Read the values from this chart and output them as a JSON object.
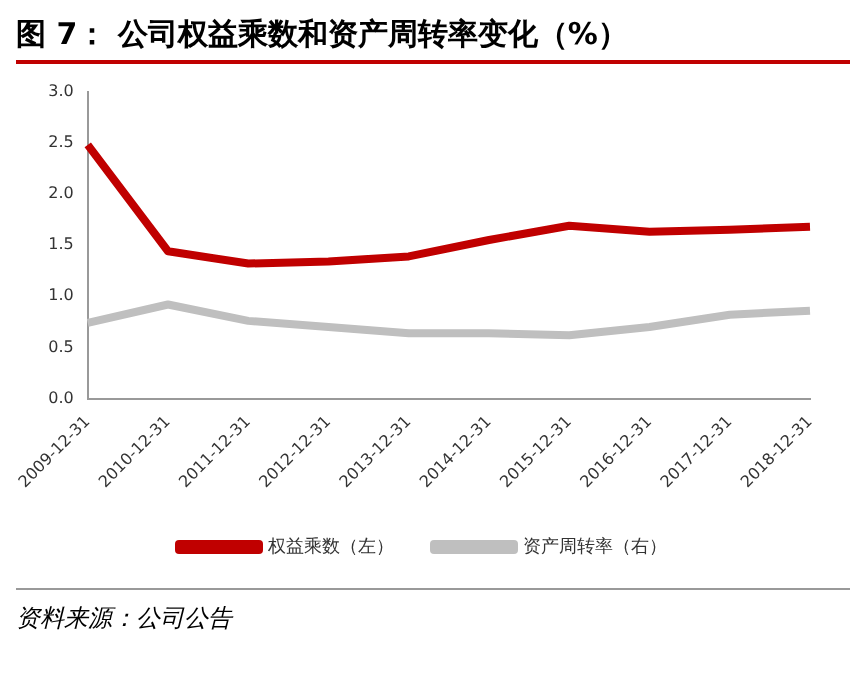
{
  "chart_data": {
    "type": "line",
    "title": "图 7： 公司权益乘数和资产周转率变化（%）",
    "annotations": [
      "资料来源：公司公告"
    ],
    "categories": [
      "2009-12-31",
      "2010-12-31",
      "2011-12-31",
      "2012-12-31",
      "2013-12-31",
      "2014-12-31",
      "2015-12-31",
      "2016-12-31",
      "2017-12-31",
      "2018-12-31"
    ],
    "series": [
      {
        "name": "权益乘数（左）",
        "color": "#c00000",
        "values": [
          2.48,
          1.44,
          1.32,
          1.34,
          1.39,
          1.55,
          1.69,
          1.63,
          1.65,
          1.68
        ]
      },
      {
        "name": "资产周转率（右）",
        "color": "#bfbfbf",
        "values": [
          0.74,
          0.92,
          0.76,
          0.7,
          0.64,
          0.64,
          0.62,
          0.7,
          0.82,
          0.86
        ]
      }
    ],
    "ylim": [
      0,
      3
    ],
    "yticks": [
      {
        "value": 0,
        "label": "0.0"
      },
      {
        "value": 0.5,
        "label": "0.5"
      },
      {
        "value": 1,
        "label": "1.0"
      },
      {
        "value": 1.5,
        "label": "1.5"
      },
      {
        "value": 2,
        "label": "2.0"
      },
      {
        "value": 2.5,
        "label": "2.5"
      },
      {
        "value": 3,
        "label": "3.0"
      }
    ],
    "grid": false,
    "legend": "bottom",
    "marker": "none",
    "line_style": "solid"
  }
}
